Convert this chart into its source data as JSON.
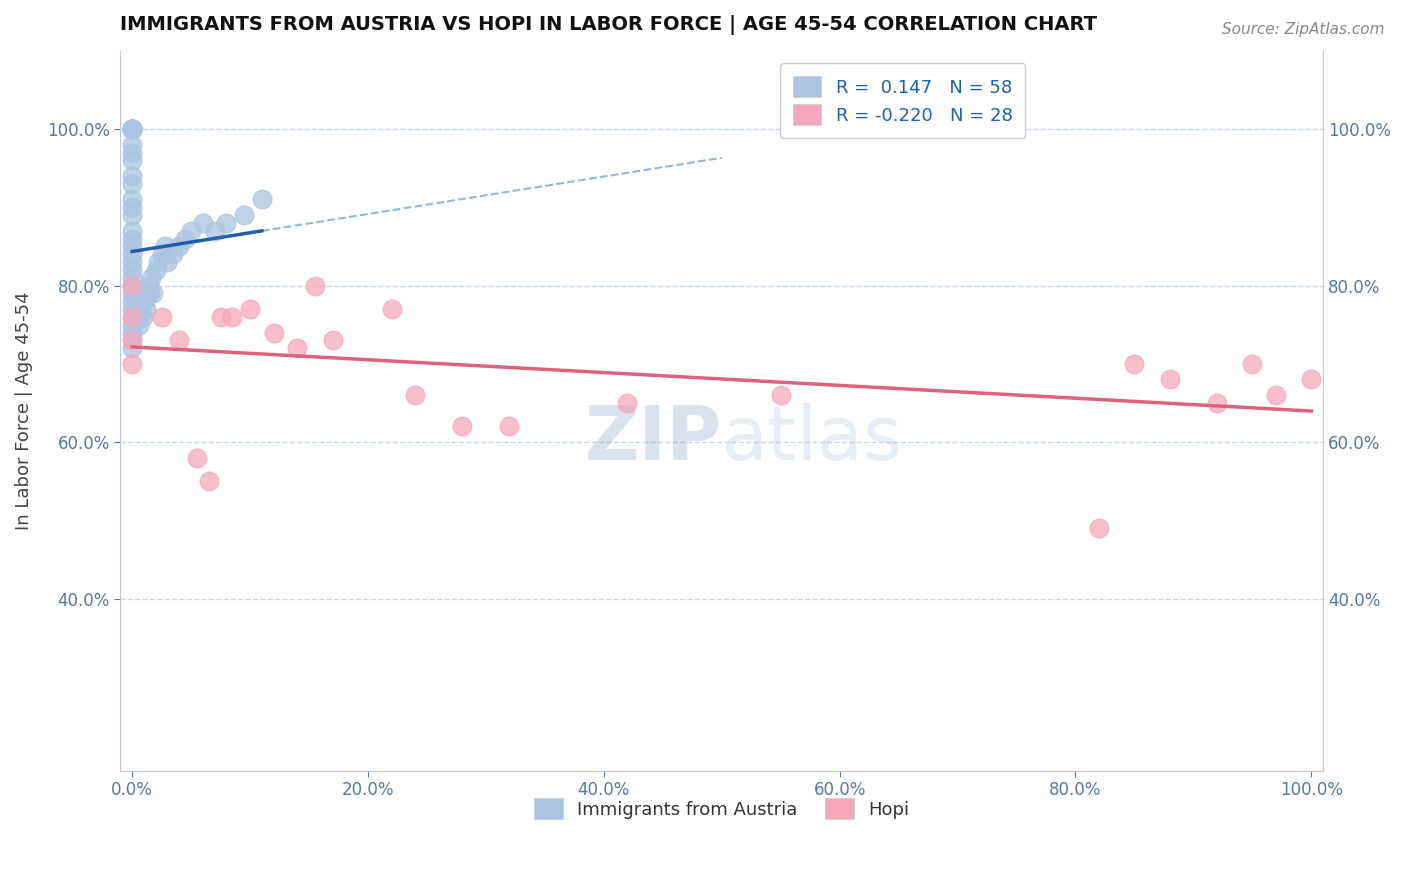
{
  "title": "IMMIGRANTS FROM AUSTRIA VS HOPI IN LABOR FORCE | AGE 45-54 CORRELATION CHART",
  "source_text": "Source: ZipAtlas.com",
  "ylabel": "In Labor Force | Age 45-54",
  "xlim": [
    -0.01,
    1.01
  ],
  "ylim": [
    0.18,
    1.1
  ],
  "xticks": [
    0.0,
    0.2,
    0.4,
    0.6,
    0.8,
    1.0
  ],
  "xticklabels": [
    "0.0%",
    "20.0%",
    "40.0%",
    "60.0%",
    "80.0%",
    "100.0%"
  ],
  "yticks": [
    0.4,
    0.6,
    0.8,
    1.0
  ],
  "yticklabels": [
    "40.0%",
    "60.0%",
    "80.0%",
    "100.0%"
  ],
  "legend_r_austria": " 0.147",
  "legend_n_austria": "58",
  "legend_r_hopi": "-0.220",
  "legend_n_hopi": "28",
  "austria_color": "#aac4e2",
  "hopi_color": "#f5a8bb",
  "austria_line_color": "#2060a8",
  "hopi_line_color": "#e06080",
  "dashed_line_color": "#90b8d8",
  "grid_color": "#c8d8ec",
  "watermark_color": "#c8d8f0",
  "austria_x": [
    0.0,
    0.0,
    0.0,
    0.0,
    0.0,
    0.0,
    0.0,
    0.0,
    0.0,
    0.0,
    0.0,
    0.0,
    0.0,
    0.0,
    0.0,
    0.0,
    0.0,
    0.0,
    0.0,
    0.0,
    0.0,
    0.0,
    0.0,
    0.0,
    0.0,
    0.0,
    0.0,
    0.0,
    0.0,
    0.0,
    0.003,
    0.004,
    0.005,
    0.006,
    0.007,
    0.008,
    0.009,
    0.01,
    0.011,
    0.012,
    0.014,
    0.015,
    0.016,
    0.018,
    0.02,
    0.022,
    0.025,
    0.028,
    0.03,
    0.035,
    0.04,
    0.045,
    0.05,
    0.06,
    0.07,
    0.08,
    0.095,
    0.11
  ],
  "austria_y": [
    1.0,
    1.0,
    1.0,
    1.0,
    1.0,
    1.0,
    0.98,
    0.97,
    0.96,
    0.94,
    0.93,
    0.91,
    0.9,
    0.89,
    0.87,
    0.86,
    0.85,
    0.84,
    0.83,
    0.82,
    0.81,
    0.8,
    0.79,
    0.78,
    0.77,
    0.76,
    0.75,
    0.74,
    0.73,
    0.72,
    0.79,
    0.77,
    0.76,
    0.75,
    0.77,
    0.78,
    0.76,
    0.78,
    0.79,
    0.77,
    0.8,
    0.79,
    0.81,
    0.79,
    0.82,
    0.83,
    0.84,
    0.85,
    0.83,
    0.84,
    0.85,
    0.86,
    0.87,
    0.88,
    0.87,
    0.88,
    0.89,
    0.91
  ],
  "hopi_x": [
    0.0,
    0.0,
    0.0,
    0.0,
    0.025,
    0.04,
    0.055,
    0.065,
    0.075,
    0.085,
    0.1,
    0.12,
    0.14,
    0.155,
    0.17,
    0.22,
    0.24,
    0.28,
    0.32,
    0.42,
    0.55,
    0.82,
    0.85,
    0.88,
    0.92,
    0.95,
    0.97,
    1.0
  ],
  "hopi_y": [
    0.8,
    0.76,
    0.73,
    0.7,
    0.76,
    0.73,
    0.58,
    0.55,
    0.76,
    0.76,
    0.77,
    0.74,
    0.72,
    0.8,
    0.73,
    0.77,
    0.66,
    0.62,
    0.62,
    0.65,
    0.66,
    0.49,
    0.7,
    0.68,
    0.65,
    0.7,
    0.66,
    0.68
  ]
}
